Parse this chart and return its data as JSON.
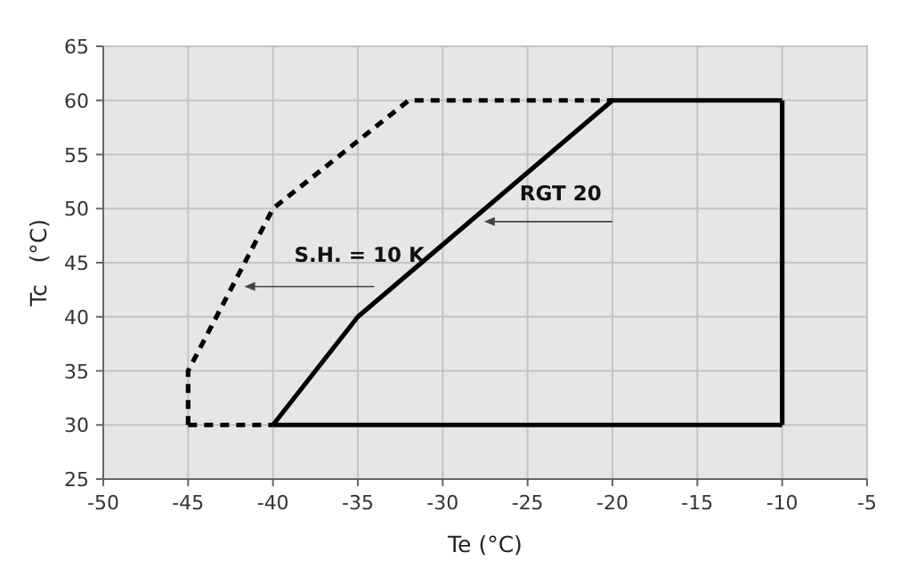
{
  "chart_data": {
    "type": "line",
    "xlabel": "Te  (°C)",
    "ylabel": "Tc   (°C)",
    "xlim": [
      -50,
      -5
    ],
    "xticks": [
      -50,
      -45,
      -40,
      -35,
      -30,
      -25,
      -20,
      -15,
      -10,
      -5
    ],
    "ylim": [
      25,
      65
    ],
    "yticks": [
      25,
      30,
      35,
      40,
      45,
      50,
      55,
      60,
      65
    ],
    "grid": true,
    "marker": "none",
    "series": [
      {
        "color": "#000000",
        "line_style": "solid",
        "x": [
          -40,
          -35,
          -20,
          -10
        ],
        "values": [
          30,
          40,
          60,
          60
        ]
      },
      {
        "color": "#000000",
        "line_style": "solid",
        "x": [
          -40,
          -10
        ],
        "values": [
          30,
          30
        ]
      },
      {
        "color": "#000000",
        "line_style": "solid",
        "x": [
          -10,
          -10
        ],
        "values": [
          30,
          60
        ]
      },
      {
        "color": "#000000",
        "line_style": "dashed",
        "x": [
          -45,
          -45,
          -40,
          -32,
          -20
        ],
        "values": [
          30,
          35,
          50,
          60,
          60
        ]
      },
      {
        "color": "#000000",
        "line_style": "dashed",
        "x": [
          -45,
          -40
        ],
        "values": [
          30,
          30
        ]
      }
    ],
    "annotations": [
      {
        "text": "RGT 20",
        "x": -28.4,
        "y": 48.8
      },
      {
        "text": "S.H. = 10 K",
        "x": -42,
        "y": 42.8
      }
    ]
  }
}
